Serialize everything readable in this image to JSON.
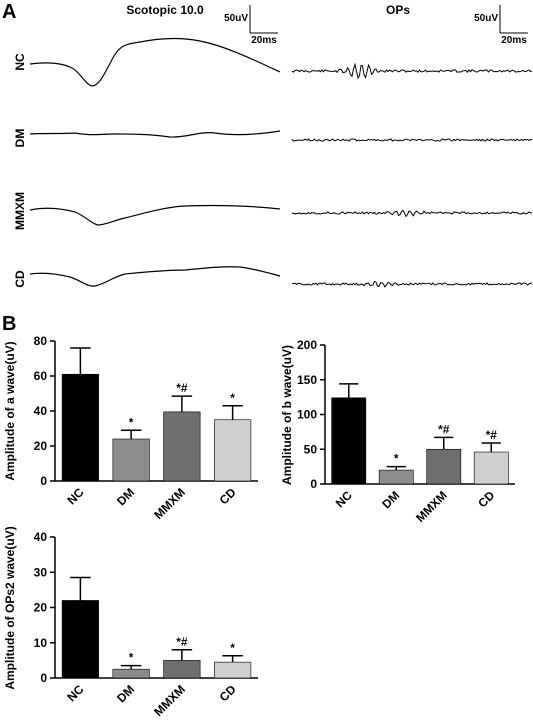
{
  "panel_a": {
    "label": "A",
    "left_title": "Scotopic 10.0",
    "right_title": "OPs",
    "scale_amp": "50uV",
    "scale_time": "20ms",
    "groups": [
      "NC",
      "DM",
      "MMXM",
      "CD"
    ]
  },
  "panel_b": {
    "label": "B"
  },
  "chart_data": [
    {
      "type": "bar",
      "title": "",
      "xlabel": "",
      "ylabel": "Amplitude of a wave(uV)",
      "categories": [
        "NC",
        "DM",
        "MMXM",
        "CD"
      ],
      "values": [
        61,
        24,
        39.5,
        35
      ],
      "errors": [
        15,
        5,
        9,
        8
      ],
      "annotations": [
        "",
        "*",
        "*#",
        "*"
      ],
      "ylim": [
        0,
        80
      ],
      "yticks": [
        0,
        20,
        40,
        60,
        80
      ],
      "colors": [
        "#000000",
        "#8c8c8c",
        "#6e6e6e",
        "#cfcfcf"
      ]
    },
    {
      "type": "bar",
      "title": "",
      "xlabel": "",
      "ylabel": "Amplitude of b wave(uV)",
      "categories": [
        "NC",
        "DM",
        "MMXM",
        "CD"
      ],
      "values": [
        124,
        20,
        50,
        46
      ],
      "errors": [
        20,
        5,
        17,
        13
      ],
      "annotations": [
        "",
        "*",
        "*#",
        "*#"
      ],
      "ylim": [
        0,
        200
      ],
      "yticks": [
        0,
        50,
        100,
        150,
        200
      ],
      "colors": [
        "#000000",
        "#8c8c8c",
        "#6e6e6e",
        "#cfcfcf"
      ]
    },
    {
      "type": "bar",
      "title": "",
      "xlabel": "",
      "ylabel": "Amplitude of OPs2 wave(uV)",
      "categories": [
        "NC",
        "DM",
        "MMXM",
        "CD"
      ],
      "values": [
        22,
        2.5,
        5,
        4.5
      ],
      "errors": [
        6.5,
        1,
        3,
        1.8
      ],
      "annotations": [
        "",
        "*",
        "*#",
        "*"
      ],
      "ylim": [
        0,
        40
      ],
      "yticks": [
        0,
        10,
        20,
        30,
        40
      ],
      "colors": [
        "#000000",
        "#8c8c8c",
        "#6e6e6e",
        "#cfcfcf"
      ]
    }
  ]
}
